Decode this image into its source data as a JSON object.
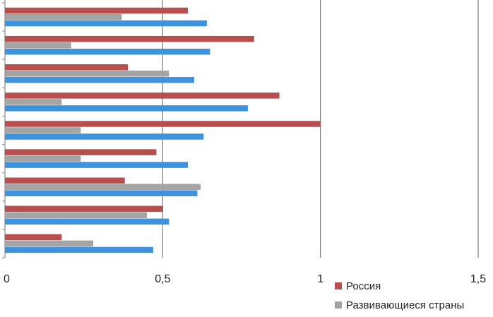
{
  "colors": {
    "russia": "#B84E4E",
    "developing": "#A4A4A4",
    "third": "#3D93DE",
    "gridline": "#7A7A7A",
    "axis": "#8A8A8A",
    "text": "#222222"
  },
  "chart_data": {
    "type": "bar",
    "orientation": "horizontal",
    "title": "",
    "xlabel": "",
    "ylabel": "",
    "xlim": [
      0,
      1.5
    ],
    "x_ticks": [
      "0",
      "0,5",
      "1",
      "1,5"
    ],
    "x_tick_values": [
      0,
      0.5,
      1,
      1.5
    ],
    "grid": true,
    "legend_placement": "bottom-right",
    "categories": [
      "",
      "",
      "",
      "",
      "",
      "",
      "",
      "",
      ""
    ],
    "series": [
      {
        "name": "Россия",
        "color_key": "russia",
        "values": [
          0.58,
          0.79,
          0.39,
          0.87,
          1.0,
          0.48,
          0.38,
          0.5,
          0.18
        ]
      },
      {
        "name": "Развивающиеся страны",
        "color_key": "developing",
        "values": [
          0.37,
          0.21,
          0.52,
          0.18,
          0.24,
          0.24,
          0.62,
          0.45,
          0.28
        ]
      },
      {
        "values": [
          0.64,
          0.65,
          0.6,
          0.77,
          0.63,
          0.58,
          0.61,
          0.52,
          0.47
        ],
        "color_key": "third"
      }
    ]
  }
}
